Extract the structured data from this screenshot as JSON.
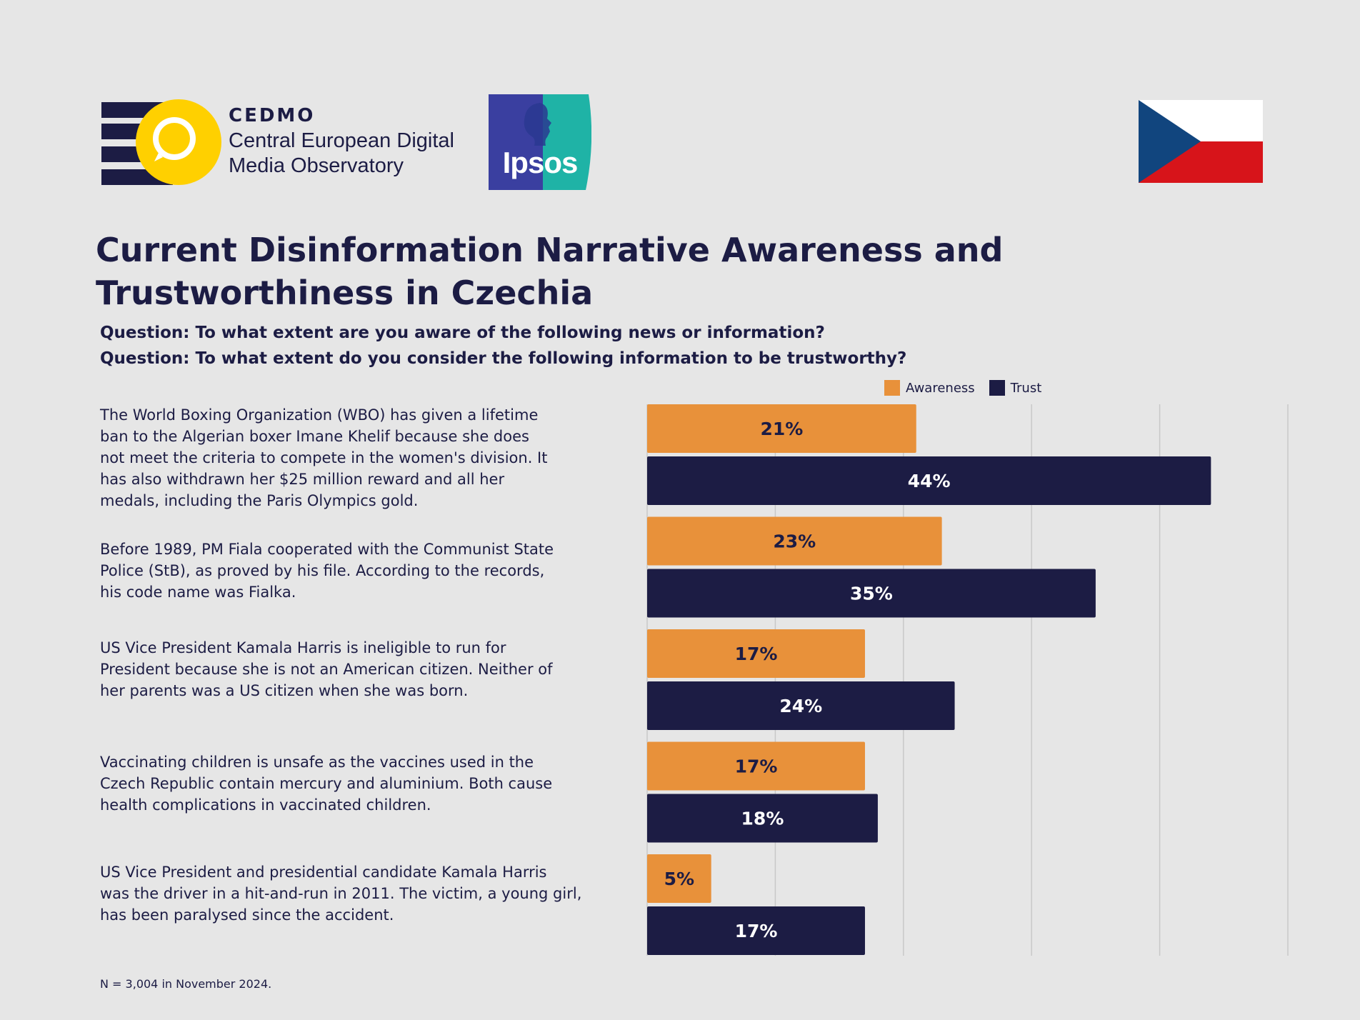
{
  "header": {
    "cedmo": {
      "title": "CEDMO",
      "subtitle_line1": "Central European Digital",
      "subtitle_line2": "Media Observatory"
    },
    "ipsos": {
      "label": "Ipsos"
    },
    "flag": {
      "country": "Czechia",
      "colors": [
        "#ffffff",
        "#d7141a",
        "#11457e"
      ]
    }
  },
  "title_line1": "Current Disinformation Narrative Awareness and",
  "title_line2": "Trustworthiness in Czechia",
  "questions": [
    "Question: To what extent are you aware of the following news or information?",
    "Question: To what extent do you consider the following information to be trustworthy?"
  ],
  "narratives": [
    [
      "The World Boxing Organization (WBO) has given a lifetime",
      "ban to the Algerian boxer Imane Khelif because she does",
      "not meet the criteria to compete in the women's division. It",
      "has also withdrawn her $25 million reward and all her",
      "medals, including the Paris Olympics gold."
    ],
    [
      "Before 1989, PM Fiala cooperated with the Communist State",
      "Police (StB), as proved by his file. According to the records,",
      "his code name was Fialka."
    ],
    [
      "US Vice President Kamala Harris is ineligible to run for",
      "President because she is not an American citizen. Neither of",
      "her parents was a US citizen when she was born."
    ],
    [
      "Vaccinating children is unsafe as the vaccines used in the",
      "Czech Republic contain mercury and aluminium. Both cause",
      "health complications in vaccinated children."
    ],
    [
      "US Vice President and presidential candidate Kamala Harris",
      "was the driver in a hit-and-run in 2011. The victim, a young girl,",
      "has been paralysed since the accident."
    ]
  ],
  "note": "N = 3,004 in November 2024.",
  "chart_data": {
    "type": "bar",
    "orientation": "horizontal",
    "categories": [
      "The World Boxing Organization (WBO) has given a lifetime ban to the Algerian boxer Imane Khelif because she does not meet the criteria to compete in the women's division. It has also withdrawn her $25 million reward and all her medals, including the Paris Olympics gold.",
      "Before 1989, PM Fiala cooperated with the Communist State Police (StB), as proved by his file. According to the records, his code name was Fialka.",
      "US Vice President Kamala Harris is ineligible to run for President because she is not an American citizen. Neither of her parents was a US citizen when she was born.",
      "Vaccinating children is unsafe as the vaccines used in the Czech Republic contain mercury and aluminium. Both cause health complications in vaccinated children.",
      "US Vice President and presidential candidate Kamala Harris was the driver in a hit-and-run in 2011. The victim, a young girl, has been paralysed since the accident."
    ],
    "series": [
      {
        "name": "Awareness",
        "color": "#e8913a",
        "values": [
          21,
          23,
          17,
          17,
          5
        ],
        "labels": [
          "21%",
          "23%",
          "17%",
          "17%",
          "5%"
        ]
      },
      {
        "name": "Trust",
        "color": "#1c1c44",
        "values": [
          44,
          35,
          24,
          18,
          17
        ],
        "labels": [
          "44%",
          "35%",
          "24%",
          "18%",
          "17%"
        ]
      }
    ],
    "xlim": [
      0,
      50
    ],
    "gridlines": [
      10,
      20,
      30,
      40,
      50
    ],
    "grid": true,
    "legend": "top-right"
  }
}
